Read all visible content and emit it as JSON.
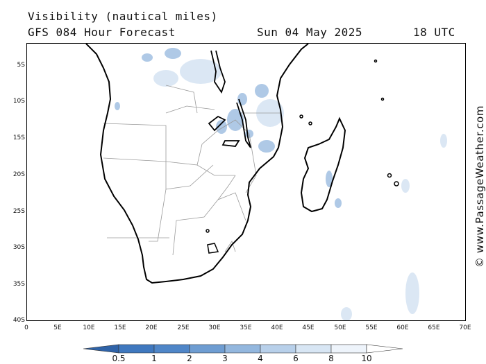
{
  "header": {
    "title": "Visibility (nautical miles)",
    "subtitle": "GFS 084 Hour Forecast",
    "date": "Sun 04 May 2025",
    "time": "18 UTC"
  },
  "credit": "© www.PassageWeather.com",
  "axes": {
    "lat_labels": [
      "5S",
      "10S",
      "15S",
      "20S",
      "25S",
      "30S",
      "35S",
      "40S"
    ],
    "lon_labels": [
      "0",
      "5E",
      "10E",
      "15E",
      "20E",
      "25E",
      "30E",
      "35E",
      "40E",
      "45E",
      "50E",
      "55E",
      "60E",
      "65E",
      "70E"
    ]
  },
  "legend": {
    "labels": [
      "0.5",
      "1",
      "2",
      "3",
      "4",
      "6",
      "8",
      "10"
    ],
    "colors": [
      "#3f78bf",
      "#4f86c8",
      "#6e9dd2",
      "#93b7de",
      "#b8d0ea",
      "#d8e6f4",
      "#eef4fb",
      "#ffffff"
    ]
  },
  "colors": {
    "land_outline": "#000000",
    "border": "#9a9a9a",
    "fog": "#6e9dd2"
  }
}
